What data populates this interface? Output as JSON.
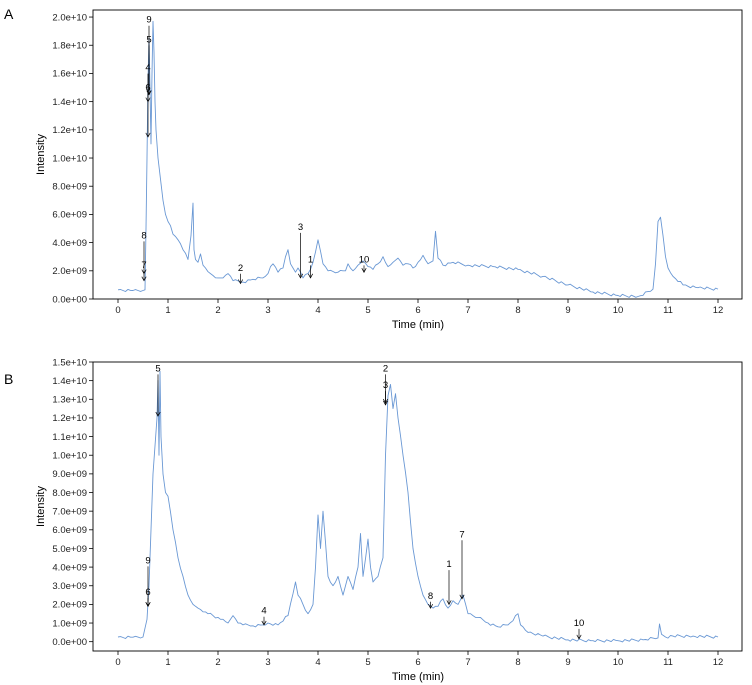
{
  "chart_data": [
    {
      "panel": "A",
      "type": "line",
      "xlabel": "Time (min)",
      "ylabel": "Intensity",
      "xlim": [
        0,
        12
      ],
      "ylim": [
        0,
        20500000000.0
      ],
      "x_ticks": [
        0,
        1,
        2,
        3,
        4,
        5,
        6,
        7,
        8,
        9,
        10,
        11,
        12
      ],
      "y_ticks": [
        0,
        2000000000.0,
        4000000000.0,
        6000000000.0,
        8000000000.0,
        10000000000.0,
        12000000000.0,
        14000000000.0,
        16000000000.0,
        18000000000.0,
        20000000000.0
      ],
      "y_tick_labels": [
        "0.0e+00",
        "2.0e+09",
        "4.0e+09",
        "6.0e+09",
        "8.0e+09",
        "1.0e+10",
        "1.2e+10",
        "1.4e+10",
        "1.6e+10",
        "1.8e+10",
        "2.0e+10"
      ],
      "line_color": "#6a98d4",
      "series": [
        {
          "x": [
            0.0,
            0.3,
            0.5,
            0.54,
            0.56,
            0.58,
            0.6,
            0.62,
            0.64,
            0.66,
            0.68,
            0.7,
            0.72,
            0.74,
            0.76,
            0.8,
            0.85,
            0.9,
            0.95,
            1.0,
            1.05,
            1.1,
            1.2,
            1.3,
            1.4,
            1.46,
            1.5,
            1.52,
            1.55,
            1.6,
            1.65,
            1.7,
            1.75,
            1.85,
            2.0,
            2.1,
            2.2,
            2.3,
            2.5,
            2.7,
            2.9,
            3.0,
            3.05,
            3.1,
            3.2,
            3.3,
            3.35,
            3.4,
            3.45,
            3.55,
            3.6,
            3.7,
            3.8,
            3.9,
            4.0,
            4.05,
            4.1,
            4.2,
            4.4,
            4.55,
            4.6,
            4.7,
            4.8,
            4.9,
            5.0,
            5.1,
            5.2,
            5.3,
            5.4,
            5.5,
            5.6,
            5.7,
            5.8,
            5.9,
            6.0,
            6.1,
            6.2,
            6.3,
            6.35,
            6.4,
            6.5,
            6.7,
            7.0,
            7.5,
            8.0,
            8.5,
            9.0,
            9.5,
            10.0,
            10.4,
            10.7,
            10.75,
            10.8,
            10.85,
            10.9,
            10.95,
            11.0,
            11.1,
            11.3,
            11.6,
            12.0
          ],
          "y": [
            650000000.0,
            600000000.0,
            600000000.0,
            650000000.0,
            5000000000.0,
            10000000000.0,
            15500000000.0,
            18500000000.0,
            15000000000.0,
            11000000000.0,
            16000000000.0,
            19700000000.0,
            17500000000.0,
            14000000000.0,
            12000000000.0,
            10000000000.0,
            8500000000.0,
            7000000000.0,
            6000000000.0,
            5500000000.0,
            5200000000.0,
            4600000000.0,
            4200000000.0,
            3500000000.0,
            2800000000.0,
            4500000000.0,
            6800000000.0,
            3500000000.0,
            2800000000.0,
            2600000000.0,
            3200000000.0,
            2400000000.0,
            2200000000.0,
            1800000000.0,
            1500000000.0,
            1500000000.0,
            1800000000.0,
            1300000000.0,
            1200000000.0,
            1400000000.0,
            1500000000.0,
            1800000000.0,
            2300000000.0,
            2500000000.0,
            1900000000.0,
            2200000000.0,
            3000000000.0,
            3500000000.0,
            2500000000.0,
            1900000000.0,
            2200000000.0,
            1500000000.0,
            1800000000.0,
            2600000000.0,
            4200000000.0,
            3400000000.0,
            2500000000.0,
            2000000000.0,
            1900000000.0,
            2000000000.0,
            2500000000.0,
            2000000000.0,
            2400000000.0,
            2700000000.0,
            2300000000.0,
            2100000000.0,
            2500000000.0,
            3000000000.0,
            2300000000.0,
            2600000000.0,
            2900000000.0,
            2400000000.0,
            2500000000.0,
            2200000000.0,
            2600000000.0,
            3100000000.0,
            2500000000.0,
            2700000000.0,
            4800000000.0,
            2900000000.0,
            2400000000.0,
            2600000000.0,
            2400000000.0,
            2300000000.0,
            2100000000.0,
            1600000000.0,
            1000000000.0,
            500000000.0,
            250000000.0,
            180000000.0,
            700000000.0,
            2500000000.0,
            5500000000.0,
            5800000000.0,
            4500000000.0,
            3000000000.0,
            2200000000.0,
            1600000000.0,
            1000000000.0,
            800000000.0,
            700000000.0
          ]
        }
      ],
      "annotations": [
        {
          "label": "9",
          "x": 0.62,
          "y_tip": 14500000000.0,
          "y_label": 19600000000.0
        },
        {
          "label": "5",
          "x": 0.62,
          "y_tip": 14500000000.0,
          "y_label": 18200000000.0
        },
        {
          "label": "4",
          "x": 0.6,
          "y_tip": 14000000000.0,
          "y_label": 16200000000.0
        },
        {
          "label": "6",
          "x": 0.6,
          "y_tip": 11500000000.0,
          "y_label": 14800000000.0
        },
        {
          "label": "8",
          "x": 0.52,
          "y_tip": 1800000000.0,
          "y_label": 4300000000.0
        },
        {
          "label": "7",
          "x": 0.52,
          "y_tip": 1300000000.0,
          "y_label": 2200000000.0
        },
        {
          "label": "3",
          "x": 3.65,
          "y_tip": 1500000000.0,
          "y_label": 4900000000.0
        },
        {
          "label": "1",
          "x": 3.85,
          "y_tip": 1500000000.0,
          "y_label": 2600000000.0
        },
        {
          "label": "2",
          "x": 2.45,
          "y_tip": 1100000000.0,
          "y_label": 2000000000.0
        },
        {
          "label": "10",
          "x": 4.92,
          "y_tip": 1900000000.0,
          "y_label": 2600000000.0
        }
      ]
    },
    {
      "panel": "B",
      "type": "line",
      "xlabel": "Time (min)",
      "ylabel": "Intensity",
      "xlim": [
        0,
        12
      ],
      "ylim": [
        -500000000.0,
        15000000000.0
      ],
      "x_ticks": [
        0,
        1,
        2,
        3,
        4,
        5,
        6,
        7,
        8,
        9,
        10,
        11,
        12
      ],
      "y_ticks": [
        0,
        1000000000.0,
        2000000000.0,
        3000000000.0,
        4000000000.0,
        5000000000.0,
        6000000000.0,
        7000000000.0,
        8000000000.0,
        9000000000.0,
        10000000000.0,
        11000000000.0,
        12000000000.0,
        13000000000.0,
        14000000000.0,
        15000000000.0
      ],
      "y_tick_labels": [
        "0.0e+00",
        "1.0e+09",
        "2.0e+09",
        "3.0e+09",
        "4.0e+09",
        "5.0e+09",
        "6.0e+09",
        "7.0e+09",
        "8.0e+09",
        "9.0e+09",
        "1.0e+10",
        "1.1e+10",
        "1.2e+10",
        "1.3e+10",
        "1.4e+10",
        "1.5e+10"
      ],
      "line_color": "#6a98d4",
      "series": [
        {
          "x": [
            0.0,
            0.3,
            0.5,
            0.58,
            0.62,
            0.66,
            0.7,
            0.74,
            0.78,
            0.8,
            0.82,
            0.84,
            0.86,
            0.9,
            0.95,
            1.0,
            1.1,
            1.2,
            1.3,
            1.4,
            1.5,
            1.6,
            1.7,
            1.8,
            1.9,
            2.0,
            2.1,
            2.2,
            2.3,
            2.4,
            2.5,
            2.7,
            2.9,
            3.0,
            3.2,
            3.4,
            3.55,
            3.6,
            3.7,
            3.8,
            3.9,
            3.95,
            4.0,
            4.05,
            4.1,
            4.2,
            4.3,
            4.4,
            4.5,
            4.6,
            4.7,
            4.8,
            4.85,
            4.9,
            5.0,
            5.05,
            5.1,
            5.2,
            5.3,
            5.35,
            5.4,
            5.45,
            5.5,
            5.55,
            5.6,
            5.7,
            5.8,
            5.9,
            6.0,
            6.1,
            6.2,
            6.3,
            6.4,
            6.5,
            6.6,
            6.7,
            6.8,
            6.9,
            7.0,
            7.2,
            7.4,
            7.6,
            7.8,
            8.0,
            8.05,
            8.2,
            8.5,
            9.0,
            9.5,
            10.0,
            10.5,
            10.8,
            10.83,
            10.87,
            10.95,
            11.1,
            11.5,
            12.0
          ],
          "y": [
            250000000.0,
            240000000.0,
            250000000.0,
            1200000000.0,
            3000000000.0,
            6000000000.0,
            9000000000.0,
            10500000000.0,
            12000000000.0,
            14000000000.0,
            10000000000.0,
            14500000000.0,
            11000000000.0,
            9000000000.0,
            8000000000.0,
            7800000000.0,
            6000000000.0,
            4500000000.0,
            3500000000.0,
            2500000000.0,
            2000000000.0,
            1800000000.0,
            1600000000.0,
            1500000000.0,
            1400000000.0,
            1300000000.0,
            1200000000.0,
            1000000000.0,
            1400000000.0,
            1000000000.0,
            900000000.0,
            850000000.0,
            900000000.0,
            1000000000.0,
            900000000.0,
            1400000000.0,
            3200000000.0,
            2500000000.0,
            2000000000.0,
            1500000000.0,
            2000000000.0,
            4000000000.0,
            6800000000.0,
            5000000000.0,
            7000000000.0,
            3500000000.0,
            3000000000.0,
            3500000000.0,
            2500000000.0,
            3500000000.0,
            2800000000.0,
            4000000000.0,
            5800000000.0,
            3500000000.0,
            5500000000.0,
            4000000000.0,
            3200000000.0,
            3500000000.0,
            4500000000.0,
            10000000000.0,
            13200000000.0,
            13800000000.0,
            12500000000.0,
            13300000000.0,
            12000000000.0,
            10000000000.0,
            8000000000.0,
            5000000000.0,
            3500000000.0,
            2500000000.0,
            2000000000.0,
            1800000000.0,
            1900000000.0,
            2300000000.0,
            1800000000.0,
            2200000000.0,
            2000000000.0,
            2500000000.0,
            1500000000.0,
            1300000000.0,
            1000000000.0,
            800000000.0,
            900000000.0,
            1500000000.0,
            900000000.0,
            500000000.0,
            300000000.0,
            100000000.0,
            50000000.0,
            50000000.0,
            100000000.0,
            200000000.0,
            950000000.0,
            400000000.0,
            250000000.0,
            300000000.0,
            300000000.0,
            250000000.0
          ]
        }
      ],
      "annotations": [
        {
          "label": "5",
          "x": 0.8,
          "y_tip": 12100000000.0,
          "y_label": 14500000000.0
        },
        {
          "label": "9",
          "x": 0.6,
          "y_tip": 1900000000.0,
          "y_label": 4200000000.0
        },
        {
          "label": "6",
          "x": 0.6,
          "y_tip": 1900000000.0,
          "y_label": 2500000000.0
        },
        {
          "label": "4",
          "x": 2.92,
          "y_tip": 900000000.0,
          "y_label": 1500000000.0
        },
        {
          "label": "2",
          "x": 5.35,
          "y_tip": 12700000000.0,
          "y_label": 14500000000.0
        },
        {
          "label": "3",
          "x": 5.35,
          "y_tip": 12800000000.0,
          "y_label": 13600000000.0
        },
        {
          "label": "8",
          "x": 6.25,
          "y_tip": 1800000000.0,
          "y_label": 2300000000.0
        },
        {
          "label": "1",
          "x": 6.62,
          "y_tip": 2000000000.0,
          "y_label": 4000000000.0
        },
        {
          "label": "7",
          "x": 6.88,
          "y_tip": 2300000000.0,
          "y_label": 5600000000.0
        },
        {
          "label": "10",
          "x": 9.22,
          "y_tip": 150000000.0,
          "y_label": 850000000.0
        }
      ]
    }
  ]
}
